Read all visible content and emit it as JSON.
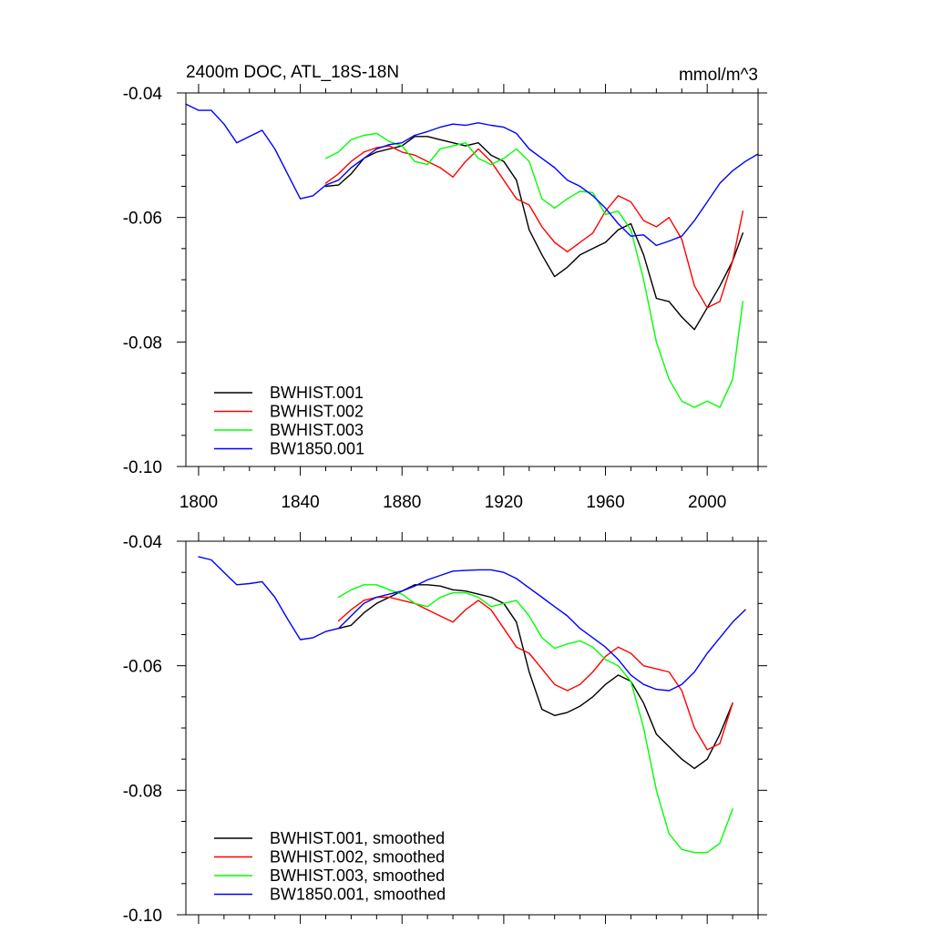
{
  "colors": {
    "black": "#000000",
    "red": "#ff0000",
    "green": "#00ff00",
    "blue": "#0000ff"
  },
  "chart_data": [
    {
      "type": "line",
      "title": "2400m DOC, ATL_18S-18N",
      "units": "mmol/m^3",
      "xlim": [
        1795,
        2020
      ],
      "ylim": [
        -0.1,
        -0.04
      ],
      "x_ticks": [
        1800,
        1840,
        1880,
        1920,
        1960,
        2000
      ],
      "x_tick_labels": [
        "1800",
        "1840",
        "1880",
        "1920",
        "1960",
        "2000"
      ],
      "y_ticks": [
        -0.04,
        -0.06,
        -0.08,
        -0.1
      ],
      "y_tick_labels": [
        "-0.04",
        "-0.06",
        "-0.08",
        "-0.10"
      ],
      "legend_position": "bottom-left",
      "series": [
        {
          "name": "BWHIST.001",
          "color": "#000000",
          "x": [
            1850,
            1855,
            1860,
            1865,
            1870,
            1875,
            1880,
            1885,
            1890,
            1895,
            1900,
            1905,
            1910,
            1915,
            1920,
            1925,
            1930,
            1935,
            1940,
            1945,
            1950,
            1955,
            1960,
            1965,
            1970,
            1975,
            1980,
            1985,
            1990,
            1995,
            2000,
            2005,
            2010,
            2014
          ],
          "y": [
            -0.055,
            -0.0548,
            -0.053,
            -0.0505,
            -0.0495,
            -0.049,
            -0.0485,
            -0.047,
            -0.047,
            -0.0475,
            -0.048,
            -0.0485,
            -0.048,
            -0.05,
            -0.051,
            -0.054,
            -0.062,
            -0.066,
            -0.0695,
            -0.068,
            -0.066,
            -0.065,
            -0.064,
            -0.062,
            -0.061,
            -0.066,
            -0.073,
            -0.0735,
            -0.076,
            -0.078,
            -0.0745,
            -0.071,
            -0.067,
            -0.0625
          ]
        },
        {
          "name": "BWHIST.002",
          "color": "#ff0000",
          "x": [
            1850,
            1855,
            1860,
            1865,
            1870,
            1875,
            1880,
            1885,
            1890,
            1895,
            1900,
            1905,
            1910,
            1915,
            1920,
            1925,
            1930,
            1935,
            1940,
            1945,
            1950,
            1955,
            1960,
            1965,
            1970,
            1975,
            1980,
            1985,
            1990,
            1995,
            2000,
            2005,
            2010,
            2014
          ],
          "y": [
            -0.0545,
            -0.053,
            -0.051,
            -0.0495,
            -0.0488,
            -0.0485,
            -0.0495,
            -0.05,
            -0.051,
            -0.052,
            -0.0535,
            -0.051,
            -0.049,
            -0.051,
            -0.054,
            -0.057,
            -0.058,
            -0.0615,
            -0.064,
            -0.0655,
            -0.064,
            -0.0625,
            -0.059,
            -0.0565,
            -0.0575,
            -0.0605,
            -0.0615,
            -0.06,
            -0.0635,
            -0.071,
            -0.0745,
            -0.0735,
            -0.067,
            -0.059
          ]
        },
        {
          "name": "BWHIST.003",
          "color": "#00ff00",
          "x": [
            1850,
            1855,
            1860,
            1865,
            1870,
            1875,
            1880,
            1885,
            1890,
            1895,
            1900,
            1905,
            1910,
            1915,
            1920,
            1925,
            1930,
            1935,
            1940,
            1945,
            1950,
            1955,
            1960,
            1965,
            1970,
            1975,
            1980,
            1985,
            1990,
            1995,
            2000,
            2005,
            2010,
            2014
          ],
          "y": [
            -0.0505,
            -0.0495,
            -0.0475,
            -0.0468,
            -0.0465,
            -0.0478,
            -0.0485,
            -0.051,
            -0.0515,
            -0.049,
            -0.0485,
            -0.048,
            -0.0505,
            -0.0515,
            -0.0505,
            -0.049,
            -0.051,
            -0.057,
            -0.0585,
            -0.057,
            -0.0558,
            -0.056,
            -0.0595,
            -0.059,
            -0.062,
            -0.07,
            -0.08,
            -0.086,
            -0.0895,
            -0.0905,
            -0.0895,
            -0.0905,
            -0.086,
            -0.0735
          ]
        },
        {
          "name": "BW1850.001",
          "color": "#0000ff",
          "x": [
            1795,
            1800,
            1805,
            1810,
            1815,
            1820,
            1825,
            1830,
            1835,
            1840,
            1845,
            1850,
            1855,
            1860,
            1865,
            1870,
            1875,
            1880,
            1885,
            1890,
            1895,
            1900,
            1905,
            1910,
            1915,
            1920,
            1925,
            1930,
            1935,
            1940,
            1945,
            1950,
            1955,
            1960,
            1965,
            1970,
            1975,
            1980,
            1985,
            1990,
            1995,
            2000,
            2005,
            2010,
            2015,
            2020
          ],
          "y": [
            -0.0418,
            -0.0428,
            -0.0428,
            -0.045,
            -0.048,
            -0.047,
            -0.046,
            -0.049,
            -0.053,
            -0.057,
            -0.0565,
            -0.0548,
            -0.054,
            -0.052,
            -0.0505,
            -0.049,
            -0.0483,
            -0.048,
            -0.0468,
            -0.0462,
            -0.0455,
            -0.045,
            -0.0452,
            -0.0448,
            -0.0452,
            -0.0455,
            -0.0465,
            -0.049,
            -0.0505,
            -0.052,
            -0.054,
            -0.055,
            -0.0565,
            -0.0585,
            -0.061,
            -0.063,
            -0.0628,
            -0.0645,
            -0.0638,
            -0.063,
            -0.0605,
            -0.0575,
            -0.0545,
            -0.0525,
            -0.051,
            -0.0498
          ]
        }
      ]
    },
    {
      "type": "line",
      "title": "",
      "units": "",
      "xlim": [
        1795,
        2020
      ],
      "ylim": [
        -0.1,
        -0.04
      ],
      "x_ticks": [
        1800,
        1840,
        1880,
        1920,
        1960,
        2000
      ],
      "x_tick_labels": [],
      "y_ticks": [
        -0.04,
        -0.06,
        -0.08,
        -0.1
      ],
      "y_tick_labels": [
        "-0.04",
        "-0.06",
        "-0.08",
        "-0.10"
      ],
      "legend_position": "bottom-left",
      "series": [
        {
          "name": "BWHIST.001, smoothed",
          "color": "#000000",
          "x": [
            1855,
            1860,
            1865,
            1870,
            1875,
            1880,
            1885,
            1890,
            1895,
            1900,
            1905,
            1910,
            1915,
            1920,
            1925,
            1930,
            1935,
            1940,
            1945,
            1950,
            1955,
            1960,
            1965,
            1970,
            1975,
            1980,
            1985,
            1990,
            1995,
            2000,
            2005,
            2010
          ],
          "y": [
            -0.054,
            -0.0535,
            -0.0515,
            -0.05,
            -0.049,
            -0.048,
            -0.047,
            -0.047,
            -0.0472,
            -0.0478,
            -0.048,
            -0.0485,
            -0.049,
            -0.05,
            -0.053,
            -0.061,
            -0.067,
            -0.068,
            -0.0675,
            -0.0665,
            -0.065,
            -0.063,
            -0.0615,
            -0.0625,
            -0.066,
            -0.071,
            -0.073,
            -0.075,
            -0.0765,
            -0.075,
            -0.071,
            -0.066
          ]
        },
        {
          "name": "BWHIST.002, smoothed",
          "color": "#ff0000",
          "x": [
            1855,
            1860,
            1865,
            1870,
            1875,
            1880,
            1885,
            1890,
            1895,
            1900,
            1905,
            1910,
            1915,
            1920,
            1925,
            1930,
            1935,
            1940,
            1945,
            1950,
            1955,
            1960,
            1965,
            1970,
            1975,
            1980,
            1985,
            1990,
            1995,
            2000,
            2005,
            2010
          ],
          "y": [
            -0.0528,
            -0.051,
            -0.0495,
            -0.049,
            -0.049,
            -0.0495,
            -0.05,
            -0.051,
            -0.052,
            -0.053,
            -0.051,
            -0.0495,
            -0.051,
            -0.054,
            -0.057,
            -0.058,
            -0.0605,
            -0.063,
            -0.064,
            -0.063,
            -0.061,
            -0.0585,
            -0.057,
            -0.058,
            -0.06,
            -0.0605,
            -0.061,
            -0.064,
            -0.07,
            -0.0735,
            -0.0725,
            -0.066
          ]
        },
        {
          "name": "BWHIST.003, smoothed",
          "color": "#00ff00",
          "x": [
            1855,
            1860,
            1865,
            1870,
            1875,
            1880,
            1885,
            1890,
            1895,
            1900,
            1905,
            1910,
            1915,
            1920,
            1925,
            1930,
            1935,
            1940,
            1945,
            1950,
            1955,
            1960,
            1965,
            1970,
            1975,
            1980,
            1985,
            1990,
            1995,
            2000,
            2005,
            2010
          ],
          "y": [
            -0.049,
            -0.0478,
            -0.047,
            -0.047,
            -0.0478,
            -0.0485,
            -0.05,
            -0.0505,
            -0.049,
            -0.0483,
            -0.0483,
            -0.049,
            -0.0505,
            -0.05,
            -0.0495,
            -0.052,
            -0.0555,
            -0.0572,
            -0.0565,
            -0.056,
            -0.057,
            -0.059,
            -0.06,
            -0.0625,
            -0.07,
            -0.08,
            -0.087,
            -0.0895,
            -0.09,
            -0.09,
            -0.0885,
            -0.083
          ]
        },
        {
          "name": "BW1850.001, smoothed",
          "color": "#0000ff",
          "x": [
            1800,
            1805,
            1810,
            1815,
            1820,
            1825,
            1830,
            1835,
            1840,
            1845,
            1850,
            1855,
            1860,
            1865,
            1870,
            1875,
            1880,
            1885,
            1890,
            1895,
            1900,
            1905,
            1910,
            1915,
            1920,
            1925,
            1930,
            1935,
            1940,
            1945,
            1950,
            1955,
            1960,
            1965,
            1970,
            1975,
            1980,
            1985,
            1990,
            1995,
            2000,
            2005,
            2010,
            2015
          ],
          "y": [
            -0.0425,
            -0.043,
            -0.045,
            -0.047,
            -0.0468,
            -0.0465,
            -0.049,
            -0.0525,
            -0.0558,
            -0.0555,
            -0.0545,
            -0.054,
            -0.052,
            -0.05,
            -0.049,
            -0.0485,
            -0.048,
            -0.0472,
            -0.0462,
            -0.0455,
            -0.0448,
            -0.0447,
            -0.0446,
            -0.0446,
            -0.045,
            -0.046,
            -0.0475,
            -0.049,
            -0.0505,
            -0.052,
            -0.054,
            -0.0555,
            -0.057,
            -0.059,
            -0.0615,
            -0.063,
            -0.0638,
            -0.064,
            -0.063,
            -0.061,
            -0.058,
            -0.0555,
            -0.053,
            -0.051
          ]
        }
      ]
    }
  ]
}
